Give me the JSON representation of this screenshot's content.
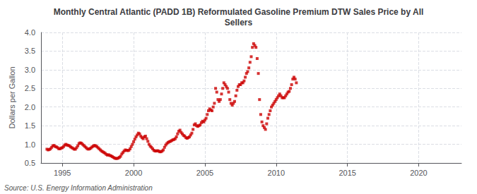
{
  "chart_data": {
    "type": "scatter",
    "title": "Monthly Central Atlantic (PADD 1B) Reformulated Gasoline Premium DTW Sales Price by All\nSellers",
    "ylabel": "Dollars per Gallon",
    "source": "Source: U.S. Energy Information Administration",
    "color": "#cc0000",
    "marker": "square",
    "grid": true,
    "xlim": [
      1993.5,
      2023.0
    ],
    "ylim": [
      0.5,
      4.0
    ],
    "xticks": [
      1995,
      2000,
      2005,
      2010,
      2015,
      2020
    ],
    "yticks": [
      0.5,
      {
        "value": 1,
        "label": "1.0"
      },
      1.5,
      {
        "value": 2,
        "label": "2.0"
      },
      2.5,
      {
        "value": 3,
        "label": "3.0"
      },
      3.5,
      {
        "value": 4,
        "label": "4.0"
      }
    ],
    "x": [
      1993.917,
      1994.0,
      1994.083,
      1994.167,
      1994.25,
      1994.333,
      1994.417,
      1994.5,
      1994.583,
      1994.667,
      1994.75,
      1994.833,
      1994.917,
      1995.0,
      1995.083,
      1995.167,
      1995.25,
      1995.333,
      1995.417,
      1995.5,
      1995.583,
      1995.667,
      1995.75,
      1995.833,
      1995.917,
      1996.0,
      1996.083,
      1996.167,
      1996.25,
      1996.333,
      1996.417,
      1996.5,
      1996.583,
      1996.667,
      1996.75,
      1996.833,
      1996.917,
      1997.0,
      1997.083,
      1997.167,
      1997.25,
      1997.333,
      1997.417,
      1997.5,
      1997.583,
      1997.667,
      1997.75,
      1997.833,
      1997.917,
      1998.0,
      1998.083,
      1998.167,
      1998.25,
      1998.333,
      1998.417,
      1998.5,
      1998.583,
      1998.667,
      1998.75,
      1998.833,
      1998.917,
      1999.0,
      1999.083,
      1999.167,
      1999.25,
      1999.333,
      1999.417,
      1999.5,
      1999.583,
      1999.667,
      1999.75,
      1999.833,
      1999.917,
      2000.0,
      2000.083,
      2000.167,
      2000.25,
      2000.333,
      2000.417,
      2000.5,
      2000.583,
      2000.667,
      2000.75,
      2000.833,
      2000.917,
      2001.0,
      2001.083,
      2001.167,
      2001.25,
      2001.333,
      2001.417,
      2001.5,
      2001.583,
      2001.667,
      2001.75,
      2001.833,
      2001.917,
      2002.0,
      2002.083,
      2002.167,
      2002.25,
      2002.333,
      2002.417,
      2002.5,
      2002.583,
      2002.667,
      2002.75,
      2002.833,
      2002.917,
      2003.0,
      2003.083,
      2003.167,
      2003.25,
      2003.333,
      2003.417,
      2003.5,
      2003.583,
      2003.667,
      2003.75,
      2003.833,
      2003.917,
      2004.0,
      2004.083,
      2004.167,
      2004.25,
      2004.333,
      2004.417,
      2004.5,
      2004.583,
      2004.667,
      2004.75,
      2004.833,
      2004.917,
      2005.0,
      2005.083,
      2005.167,
      2005.25,
      2005.333,
      2005.417,
      2005.5,
      2005.583,
      2005.667,
      2005.75,
      2005.833,
      2005.917,
      2006.0,
      2006.083,
      2006.167,
      2006.25,
      2006.333,
      2006.417,
      2006.5,
      2006.583,
      2006.667,
      2006.75,
      2006.833,
      2006.917,
      2007.0,
      2007.083,
      2007.167,
      2007.25,
      2007.333,
      2007.417,
      2007.5,
      2007.583,
      2007.667,
      2007.75,
      2007.833,
      2007.917,
      2008.0,
      2008.083,
      2008.167,
      2008.25,
      2008.333,
      2008.417,
      2008.5,
      2008.583,
      2008.667,
      2008.75,
      2008.833,
      2008.917,
      2009.0,
      2009.083,
      2009.167,
      2009.25,
      2009.333,
      2009.417,
      2009.5,
      2009.583,
      2009.667,
      2009.75,
      2009.833,
      2009.917,
      2010.0,
      2010.083,
      2010.167,
      2010.25,
      2010.333,
      2010.417,
      2010.5,
      2010.583,
      2010.667,
      2010.75,
      2010.833,
      2010.917,
      2011.0,
      2011.083,
      2011.167,
      2011.25,
      2011.333,
      2011.417
    ],
    "values": [
      0.87,
      0.85,
      0.86,
      0.88,
      0.92,
      0.96,
      0.97,
      0.94,
      0.93,
      0.91,
      0.88,
      0.88,
      0.9,
      0.91,
      0.94,
      0.98,
      1.0,
      0.98,
      0.97,
      0.96,
      0.93,
      0.91,
      0.89,
      0.87,
      0.87,
      0.91,
      0.96,
      1.02,
      1.04,
      1.03,
      1.0,
      0.97,
      0.94,
      0.91,
      0.88,
      0.87,
      0.88,
      0.9,
      0.93,
      0.95,
      0.97,
      0.96,
      0.94,
      0.91,
      0.88,
      0.85,
      0.82,
      0.8,
      0.78,
      0.76,
      0.73,
      0.71,
      0.72,
      0.7,
      0.69,
      0.67,
      0.65,
      0.63,
      0.62,
      0.62,
      0.63,
      0.65,
      0.68,
      0.74,
      0.78,
      0.82,
      0.85,
      0.84,
      0.83,
      0.84,
      0.88,
      0.94,
      1.0,
      1.07,
      1.14,
      1.2,
      1.25,
      1.3,
      1.28,
      1.22,
      1.18,
      1.15,
      1.2,
      1.22,
      1.15,
      1.08,
      1.0,
      0.95,
      0.92,
      0.88,
      0.84,
      0.82,
      0.82,
      0.83,
      0.82,
      0.8,
      0.8,
      0.82,
      0.85,
      0.92,
      0.98,
      1.02,
      1.05,
      1.07,
      1.08,
      1.1,
      1.12,
      1.13,
      1.15,
      1.2,
      1.28,
      1.35,
      1.38,
      1.32,
      1.28,
      1.24,
      1.22,
      1.18,
      1.16,
      1.18,
      1.2,
      1.25,
      1.3,
      1.4,
      1.52,
      1.55,
      1.5,
      1.48,
      1.5,
      1.52,
      1.58,
      1.62,
      1.6,
      1.65,
      1.7,
      1.8,
      1.9,
      1.95,
      1.92,
      1.9,
      2.0,
      2.1,
      2.5,
      2.4,
      2.2,
      2.15,
      2.2,
      2.35,
      2.5,
      2.65,
      2.6,
      2.55,
      2.5,
      2.4,
      2.2,
      2.1,
      2.05,
      2.1,
      2.15,
      2.3,
      2.45,
      2.55,
      2.6,
      2.6,
      2.65,
      2.65,
      2.7,
      2.8,
      2.9,
      2.95,
      3.05,
      3.2,
      3.35,
      3.6,
      3.7,
      3.65,
      3.6,
      3.3,
      2.9,
      2.2,
      1.8,
      1.6,
      1.5,
      1.45,
      1.4,
      1.55,
      1.7,
      1.8,
      1.9,
      2.0,
      2.05,
      2.1,
      2.15,
      2.2,
      2.25,
      2.3,
      2.35,
      2.3,
      2.25,
      2.25,
      2.25,
      2.3,
      2.35,
      2.4,
      2.42,
      2.5,
      2.6,
      2.75,
      2.8,
      2.75,
      2.65
    ]
  }
}
